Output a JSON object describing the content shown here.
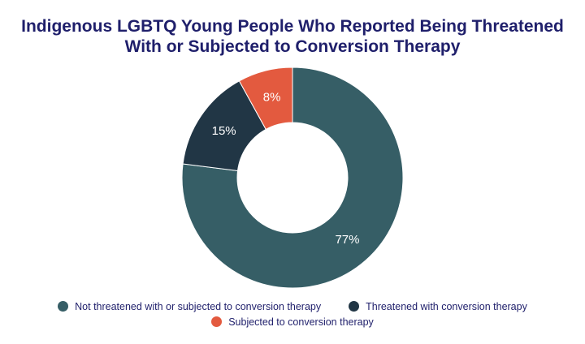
{
  "title_line1": "Indigenous LGBTQ Young People Who Reported Being Threatened",
  "title_line2": "With or Subjected to Conversion Therapy",
  "chart_data": {
    "type": "pie",
    "style": "donut",
    "title": "Indigenous LGBTQ Young People Who Reported Being Threatened With or Subjected to Conversion Therapy",
    "categories": [
      "Not threatened with or subjected to conversion therapy",
      "Threatened with conversion therapy",
      "Subjected to conversion therapy"
    ],
    "values": [
      77,
      15,
      8
    ],
    "labels": [
      "77%",
      "15%",
      "8%"
    ],
    "colors": [
      "#365e66",
      "#213645",
      "#e35a3f"
    ],
    "legend_position": "bottom"
  }
}
